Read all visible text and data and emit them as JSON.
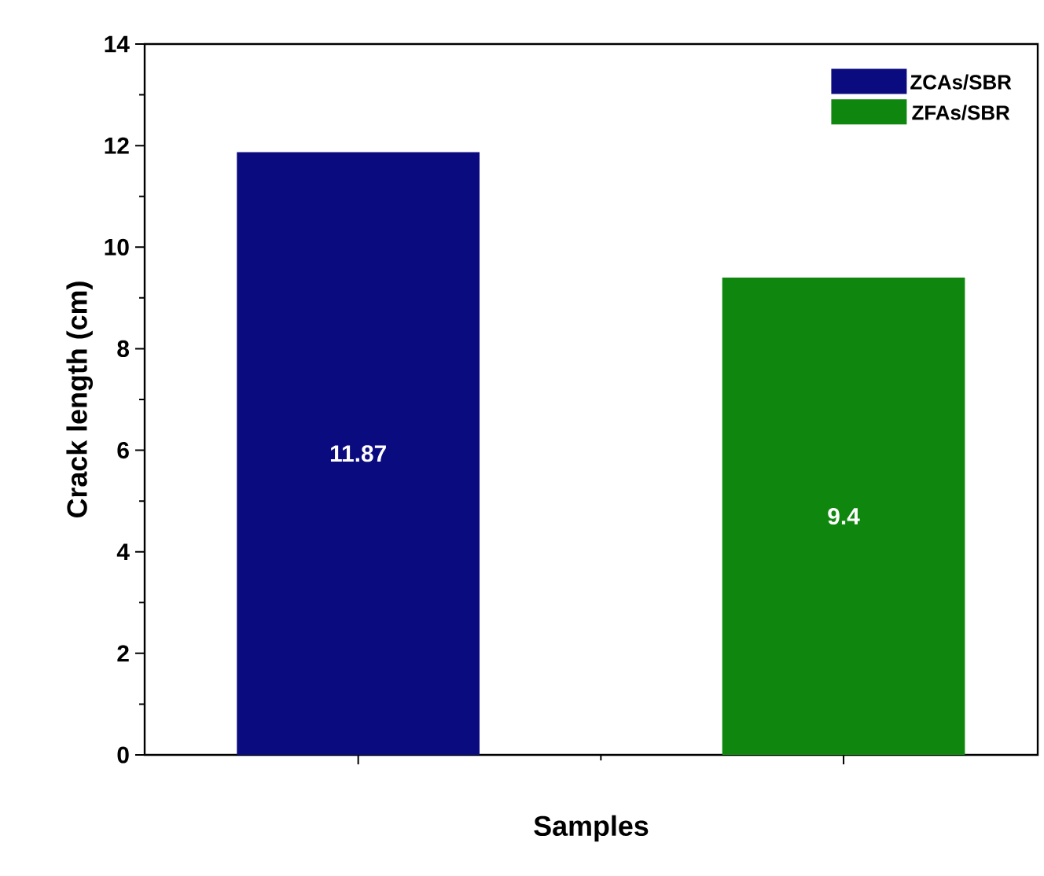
{
  "chart_data": {
    "type": "bar",
    "xlabel": "Samples",
    "ylabel": "Crack length (cm)",
    "categories": [
      null,
      null
    ],
    "series": [
      {
        "name": "ZCAs/SBR",
        "color": "#0b0b80",
        "values": [
          11.87,
          null
        ]
      },
      {
        "name": "ZFAs/SBR",
        "color": "#0f870f",
        "values": [
          null,
          9.4
        ]
      }
    ],
    "stacked": true,
    "ylim": [
      0,
      14
    ],
    "yticks": [
      0,
      2,
      4,
      6,
      8,
      10,
      12,
      14
    ],
    "data_labels": true,
    "legend": "top right"
  }
}
